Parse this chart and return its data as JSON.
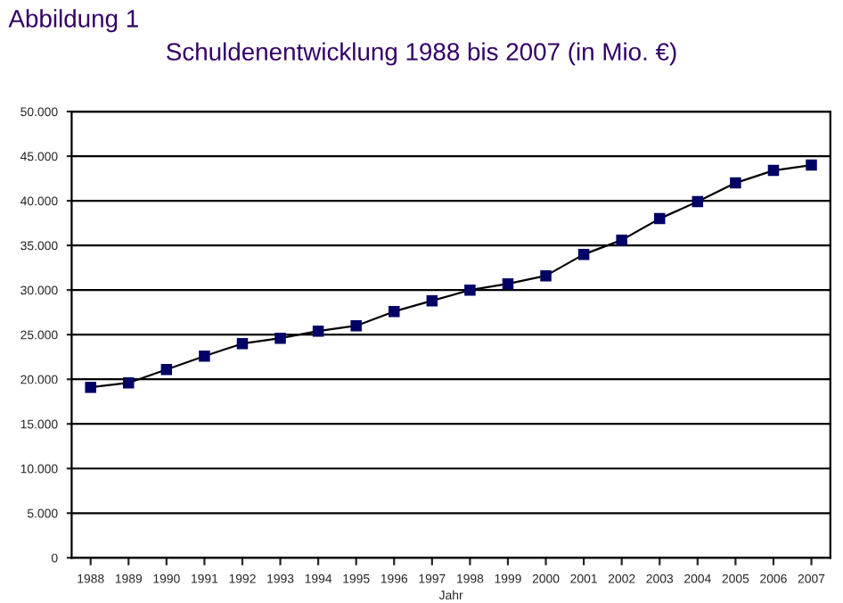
{
  "chart_data": {
    "type": "line",
    "title": "Schuldenentwicklung 1988 bis 2007 (in Mio. €)",
    "xlabel": "Jahr",
    "annotations": [
      "Abbildung 1"
    ],
    "categories": [
      "1988",
      "1989",
      "1990",
      "1991",
      "1992",
      "1993",
      "1994",
      "1995",
      "1996",
      "1997",
      "1998",
      "1999",
      "2000",
      "2001",
      "2002",
      "2003",
      "2004",
      "2005",
      "2006",
      "2007"
    ],
    "series": [
      {
        "color": "#000066",
        "values": [
          19100,
          19600,
          21100,
          22600,
          24000,
          24600,
          25400,
          26000,
          27600,
          28800,
          30000,
          30700,
          31600,
          34000,
          35600,
          38000,
          39900,
          42000,
          43400,
          44000
        ]
      }
    ],
    "ylim": [
      0,
      50000
    ],
    "yticks": [
      {
        "value": 0,
        "label": "0"
      },
      {
        "value": 5000,
        "label": "5.000"
      },
      {
        "value": 10000,
        "label": "10.000"
      },
      {
        "value": 15000,
        "label": "15.000"
      },
      {
        "value": 20000,
        "label": "20.000"
      },
      {
        "value": 25000,
        "label": "25.000"
      },
      {
        "value": 30000,
        "label": "30.000"
      },
      {
        "value": 35000,
        "label": "35.000"
      },
      {
        "value": 40000,
        "label": "40.000"
      },
      {
        "value": 45000,
        "label": "45.000"
      },
      {
        "value": 50000,
        "label": "50.000"
      }
    ],
    "grid": "y",
    "marker": "square",
    "line_style": "solid",
    "legend": false
  }
}
